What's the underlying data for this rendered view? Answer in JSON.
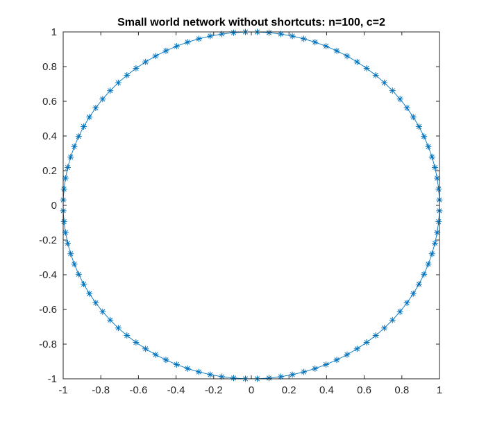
{
  "chart_data": {
    "type": "line",
    "title": "Small world network without shortcuts: n=100, c=2",
    "xlabel": "",
    "ylabel": "",
    "xlim": [
      -1,
      1
    ],
    "ylim": [
      -1,
      1
    ],
    "xticks": [
      -1,
      -0.8,
      -0.6,
      -0.4,
      -0.2,
      0,
      0.2,
      0.4,
      0.6,
      0.8,
      1
    ],
    "yticks": [
      -1,
      -0.8,
      -0.6,
      -0.4,
      -0.2,
      0,
      0.2,
      0.4,
      0.6,
      0.8,
      1
    ],
    "xtick_labels": [
      "-1",
      "-0.8",
      "-0.6",
      "-0.4",
      "-0.2",
      "0",
      "0.2",
      "0.4",
      "0.6",
      "0.8",
      "1"
    ],
    "ytick_labels": [
      "-1",
      "-0.8",
      "-0.6",
      "-0.4",
      "-0.2",
      "0",
      "0.2",
      "0.4",
      "0.6",
      "0.8",
      "1"
    ],
    "grid": false,
    "box": true,
    "series": [
      {
        "node_count": 100,
        "radius": 1,
        "angle_offset_degrees": 1.8,
        "marker": "asterisk",
        "connected": true,
        "closed_loop": true
      }
    ],
    "colors": {
      "series": "#0072BD",
      "axis": "#262626",
      "title": "#000000",
      "background": "#ffffff"
    }
  }
}
